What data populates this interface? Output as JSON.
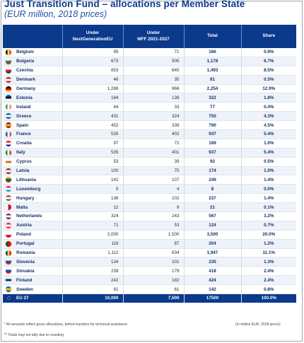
{
  "title": "Just Transition Fund – allocations per Member State",
  "subtitle": "(EUR million, 2018 prices)",
  "headers": {
    "country": "",
    "ngeu": "Under NextGenerationEU",
    "mff": "Under MFF 2021-2027",
    "total": "Total",
    "share": "Share"
  },
  "rows": [
    {
      "country": "Belgium",
      "ngeu": "95",
      "mff": "71",
      "total": "166",
      "share": "0.9%",
      "flag": [
        "#000000",
        "#fdda24",
        "#ef3340"
      ],
      "dir": "v"
    },
    {
      "country": "Bulgaria",
      "ngeu": "673",
      "mff": "505",
      "total": "1,178",
      "share": "6.7%",
      "flag": [
        "#ffffff",
        "#00966e",
        "#d62612"
      ],
      "dir": "h"
    },
    {
      "country": "Czechia",
      "ngeu": "853",
      "mff": "640",
      "total": "1,493",
      "share": "8.5%",
      "flag": [
        "#ffffff",
        "#d7141a",
        "#11457e"
      ],
      "dir": "h"
    },
    {
      "country": "Denmark",
      "ngeu": "46",
      "mff": "35",
      "total": "81",
      "share": "0.5%",
      "flag": [
        "#c8102e",
        "#ffffff",
        "#c8102e"
      ],
      "dir": "h"
    },
    {
      "country": "Germany",
      "ngeu": "1,288",
      "mff": "966",
      "total": "2,254",
      "share": "12.9%",
      "flag": [
        "#000000",
        "#dd0000",
        "#ffce00"
      ],
      "dir": "h"
    },
    {
      "country": "Estonia",
      "ngeu": "184",
      "mff": "138",
      "total": "322",
      "share": "1.8%",
      "flag": [
        "#0072ce",
        "#000000",
        "#ffffff"
      ],
      "dir": "h"
    },
    {
      "country": "Ireland",
      "ngeu": "44",
      "mff": "33",
      "total": "77",
      "share": "0.4%",
      "flag": [
        "#169b62",
        "#ffffff",
        "#ff883e"
      ],
      "dir": "v"
    },
    {
      "country": "Greece",
      "ngeu": "431",
      "mff": "324",
      "total": "755",
      "share": "4.3%",
      "flag": [
        "#0d5eaf",
        "#ffffff",
        "#0d5eaf"
      ],
      "dir": "h"
    },
    {
      "country": "Spain",
      "ngeu": "452",
      "mff": "339",
      "total": "790",
      "share": "4.5%",
      "flag": [
        "#aa151b",
        "#f1bf00",
        "#aa151b"
      ],
      "dir": "h"
    },
    {
      "country": "France",
      "ngeu": "535",
      "mff": "402",
      "total": "937",
      "share": "5.4%",
      "flag": [
        "#0055a4",
        "#ffffff",
        "#ef4135"
      ],
      "dir": "v"
    },
    {
      "country": "Croatia",
      "ngeu": "97",
      "mff": "72",
      "total": "169",
      "share": "1.0%",
      "flag": [
        "#ff0000",
        "#ffffff",
        "#171796"
      ],
      "dir": "h"
    },
    {
      "country": "Italy",
      "ngeu": "535",
      "mff": "401",
      "total": "937",
      "share": "5.4%",
      "flag": [
        "#009246",
        "#ffffff",
        "#ce2b37"
      ],
      "dir": "v"
    },
    {
      "country": "Cyprus",
      "ngeu": "53",
      "mff": "39",
      "total": "92",
      "share": "0.5%",
      "flag": [
        "#ffffff",
        "#d57800",
        "#ffffff"
      ],
      "dir": "h"
    },
    {
      "country": "Latvia",
      "ngeu": "100",
      "mff": "75",
      "total": "174",
      "share": "1.0%",
      "flag": [
        "#9e3039",
        "#ffffff",
        "#9e3039"
      ],
      "dir": "h"
    },
    {
      "country": "Lithuania",
      "ngeu": "142",
      "mff": "107",
      "total": "249",
      "share": "1.4%",
      "flag": [
        "#fdb913",
        "#006a44",
        "#c1272d"
      ],
      "dir": "h"
    },
    {
      "country": "Luxemburg",
      "ngeu": "5",
      "mff": "4",
      "total": "8",
      "share": "0.0%",
      "flag": [
        "#ed2939",
        "#ffffff",
        "#00a1de"
      ],
      "dir": "h"
    },
    {
      "country": "Hungary",
      "ngeu": "136",
      "mff": "102",
      "total": "237",
      "share": "1.4%",
      "flag": [
        "#ce2939",
        "#ffffff",
        "#477050"
      ],
      "dir": "h"
    },
    {
      "country": "Malta",
      "ngeu": "12",
      "mff": "9",
      "total": "21",
      "share": "0.1%",
      "flag": [
        "#ffffff",
        "#cf142b",
        "#cf142b"
      ],
      "dir": "v2"
    },
    {
      "country": "Netherlands",
      "ngeu": "324",
      "mff": "243",
      "total": "567",
      "share": "3.2%",
      "flag": [
        "#ae1c28",
        "#ffffff",
        "#21468b"
      ],
      "dir": "h"
    },
    {
      "country": "Austria",
      "ngeu": "71",
      "mff": "53",
      "total": "124",
      "share": "0.7%",
      "flag": [
        "#ed2939",
        "#ffffff",
        "#ed2939"
      ],
      "dir": "h"
    },
    {
      "country": "Poland",
      "ngeu": "2,000",
      "mff": "1,500",
      "total": "3,500",
      "share": "20.0%",
      "flag": [
        "#ffffff",
        "#ffffff",
        "#dc143c"
      ],
      "dir": "h2"
    },
    {
      "country": "Portugal",
      "ngeu": "116",
      "mff": "87",
      "total": "204",
      "share": "1.2%",
      "flag": [
        "#006600",
        "#ff0000",
        "#ff0000"
      ],
      "dir": "v2"
    },
    {
      "country": "Romania",
      "ngeu": "1,112",
      "mff": "834",
      "total": "1,947",
      "share": "11.1%",
      "flag": [
        "#002b7f",
        "#fcd116",
        "#ce1126"
      ],
      "dir": "v"
    },
    {
      "country": "Slovenia",
      "ngeu": "134",
      "mff": "101",
      "total": "235",
      "share": "1.3%",
      "flag": [
        "#ffffff",
        "#005da4",
        "#ed1c24"
      ],
      "dir": "h"
    },
    {
      "country": "Slovakia",
      "ngeu": "239",
      "mff": "179",
      "total": "418",
      "share": "2.4%",
      "flag": [
        "#ffffff",
        "#0b4ea2",
        "#ee1c25"
      ],
      "dir": "h"
    },
    {
      "country": "Finland",
      "ngeu": "242",
      "mff": "182",
      "total": "424",
      "share": "2.4%",
      "flag": [
        "#ffffff",
        "#002f6c",
        "#ffffff"
      ],
      "dir": "h"
    },
    {
      "country": "Sweden",
      "ngeu": "81",
      "mff": "61",
      "total": "142",
      "share": "0.8%",
      "flag": [
        "#006aa7",
        "#fecc00",
        "#006aa7"
      ],
      "dir": "h"
    }
  ],
  "total_row": {
    "country": "EU 27",
    "ngeu": "10,000",
    "mff": "7,500",
    "total": "17500",
    "share": "100.0%"
  },
  "footnotes": {
    "note1": "* All amounts reflect gross allocations, before transfers for technical assistance",
    "note2": "** Totals may not tally due to rounding",
    "units": "(In million EUR, 2018 prices)"
  }
}
